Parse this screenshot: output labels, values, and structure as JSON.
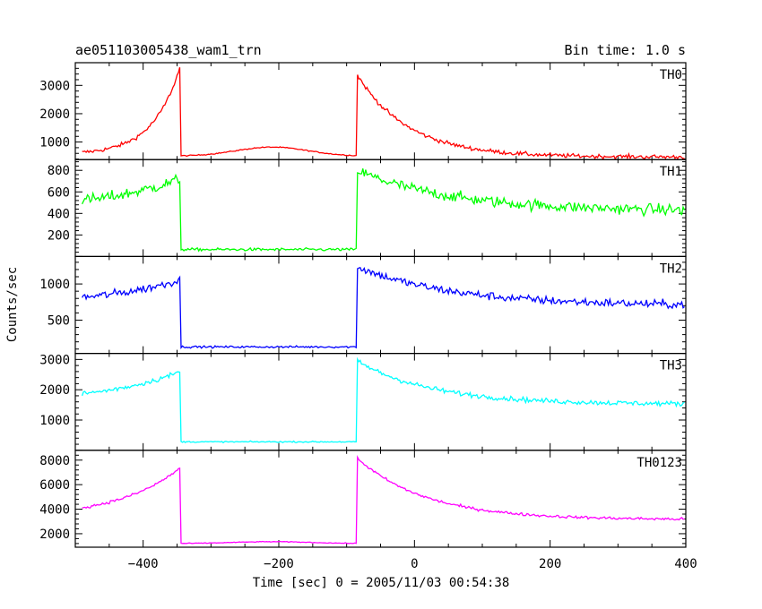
{
  "chart_data": {
    "type": "line",
    "title": "ae051103005438_wam1_trn",
    "bin_time_label": "Bin time: 1.0 s",
    "xlabel": "Time [sec] 0 = 2005/11/03 00:54:38",
    "ylabel": "Counts/sec",
    "xlim": [
      -500,
      400
    ],
    "x_ticks": [
      -400,
      -200,
      0,
      200,
      400
    ],
    "grid": false,
    "x_sampling": {
      "start": -490,
      "end": 398,
      "step": 2
    },
    "panels": [
      {
        "name": "TH0",
        "color": "#ff0000",
        "ylim": [
          380,
          3800
        ],
        "y_ticks": [
          1000,
          2000,
          3000
        ],
        "shape": {
          "base": 550,
          "rise_peak": 3150,
          "rise_tau": 40,
          "low_level": 500,
          "hump_amp": 320,
          "hump_center": -210,
          "hump_width": 75,
          "decay_peak": 3400,
          "decay_base": 470,
          "decay_tau": 75,
          "noise": 70
        }
      },
      {
        "name": "TH1",
        "color": "#00ff00",
        "ylim": [
          0,
          900
        ],
        "y_ticks": [
          200,
          400,
          600,
          800
        ],
        "shape": {
          "base": 420,
          "rise_peak": 300,
          "rise_tau": 130,
          "low_level": 65,
          "hump_amp": 0,
          "hump_center": -210,
          "hump_width": 80,
          "decay_peak": 800,
          "decay_base": 420,
          "decay_tau": 140,
          "noise": 50
        }
      },
      {
        "name": "TH2",
        "color": "#0000ff",
        "ylim": [
          40,
          1380
        ],
        "y_ticks": [
          500,
          1000
        ],
        "shape": {
          "base": 710,
          "rise_peak": 350,
          "rise_tau": 120,
          "low_level": 130,
          "hump_amp": 0,
          "hump_center": -210,
          "hump_width": 80,
          "decay_peak": 1240,
          "decay_base": 700,
          "decay_tau": 140,
          "noise": 55
        }
      },
      {
        "name": "TH3",
        "color": "#00ffff",
        "ylim": [
          0,
          3200
        ],
        "y_ticks": [
          1000,
          2000,
          3000
        ],
        "shape": {
          "base": 1550,
          "rise_peak": 1050,
          "rise_tau": 120,
          "low_level": 280,
          "hump_amp": 0,
          "hump_center": -210,
          "hump_width": 80,
          "decay_peak": 2950,
          "decay_base": 1520,
          "decay_tau": 110,
          "noise": 80
        }
      },
      {
        "name": "TH0123",
        "color": "#ff00ff",
        "ylim": [
          900,
          8800
        ],
        "y_ticks": [
          2000,
          4000,
          6000,
          8000
        ],
        "shape": {
          "base": 3300,
          "rise_peak": 4100,
          "rise_tau": 90,
          "low_level": 1200,
          "hump_amp": 150,
          "hump_center": -210,
          "hump_width": 80,
          "decay_peak": 8200,
          "decay_base": 3150,
          "decay_tau": 100,
          "noise": 110
        }
      }
    ],
    "events": {
      "rise_start": -500,
      "drop": -345,
      "jump": -85
    }
  }
}
